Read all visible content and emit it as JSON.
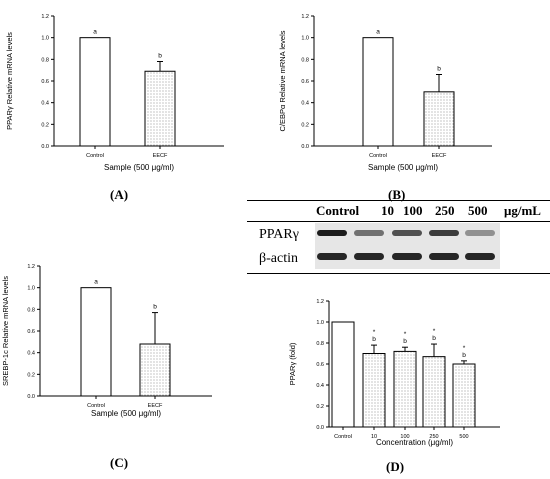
{
  "panel_labels": [
    "(A)",
    "(B)",
    "(C)",
    "(D)"
  ],
  "chart_data": [
    {
      "type": "bar",
      "panel": "A",
      "title": "",
      "xlabel": "Sample (500 μg/ml)",
      "ylabel": "PPARγ Relative mRNA levels",
      "categories": [
        "Control",
        "EECF"
      ],
      "values": [
        1.0,
        0.69
      ],
      "errors": [
        0,
        0.09
      ],
      "labels": [
        "a",
        "b"
      ],
      "ylim": [
        0,
        1.2
      ],
      "yticks": [
        "0.0",
        "0.2",
        "0.4",
        "0.6",
        "0.8",
        "1.0",
        "1.2"
      ],
      "grid": false
    },
    {
      "type": "bar",
      "panel": "B",
      "title": "",
      "xlabel": "Sample (500 μg/ml)",
      "ylabel": "C/EBPα Relative mRNA levels",
      "categories": [
        "Control",
        "EECF"
      ],
      "values": [
        1.0,
        0.5
      ],
      "errors": [
        0,
        0.16
      ],
      "labels": [
        "a",
        "b"
      ],
      "ylim": [
        0,
        1.2
      ],
      "yticks": [
        "0.0",
        "0.2",
        "0.4",
        "0.6",
        "0.8",
        "1.0",
        "1.2"
      ],
      "grid": false
    },
    {
      "type": "bar",
      "panel": "C",
      "title": "",
      "xlabel": "Sample (500 μg/ml)",
      "ylabel": "SREBP-1c Relative mRNA levels",
      "categories": [
        "Control",
        "EECF"
      ],
      "values": [
        1.0,
        0.48
      ],
      "errors": [
        0,
        0.29
      ],
      "labels": [
        "a",
        "b"
      ],
      "ylim": [
        0,
        1.2
      ],
      "yticks": [
        "0.0",
        "0.2",
        "0.4",
        "0.6",
        "0.8",
        "1.0",
        "1.2"
      ],
      "grid": false
    },
    {
      "type": "bar",
      "panel": "D",
      "title": "",
      "xlabel": "Concentration (μg/ml)",
      "ylabel": "PPARγ (fold)",
      "categories": [
        "Control",
        "10",
        "100",
        "250",
        "500"
      ],
      "values": [
        1.0,
        0.7,
        0.72,
        0.67,
        0.6
      ],
      "errors": [
        0,
        0.08,
        0.04,
        0.12,
        0.03
      ],
      "labels": [
        "",
        "*\nb",
        "*\nb",
        "*\nb",
        "*\nb"
      ],
      "ylim": [
        0,
        1.2
      ],
      "yticks": [
        "0.0",
        "0.2",
        "0.4",
        "0.6",
        "0.8",
        "1.0",
        "1.2"
      ],
      "grid": false
    }
  ],
  "western_blot": {
    "headers": [
      "Control",
      "10",
      "100",
      "250",
      "500",
      "μg/mL"
    ],
    "rows": [
      "PPARγ",
      "β-actin"
    ],
    "intensity": {
      "PPARγ": [
        0.95,
        0.55,
        0.7,
        0.8,
        0.4
      ],
      "β-actin": [
        0.9,
        0.9,
        0.9,
        0.9,
        0.9
      ]
    }
  }
}
